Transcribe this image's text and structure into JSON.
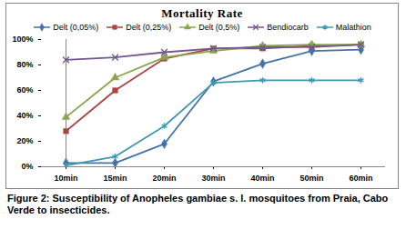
{
  "chart_data": {
    "type": "line",
    "title": "Mortality Rate",
    "caption": "Figure 2: Susceptibility of Anopheles gambiae s. l. mosquitoes from Praia, Cabo Verde to insecticides.",
    "categories": [
      "10min",
      "15min",
      "20min",
      "30min",
      "40min",
      "50min",
      "60min"
    ],
    "series": [
      {
        "name": "Delt (0,05%)",
        "color": "#4572A7",
        "marker": "diamond",
        "values": [
          3,
          3,
          18,
          67,
          81,
          91,
          92
        ]
      },
      {
        "name": "Delt (0,25%)",
        "color": "#AA4643",
        "marker": "square",
        "values": [
          28,
          60,
          85,
          93,
          93,
          95,
          96
        ]
      },
      {
        "name": "Delt (0,5%)",
        "color": "#89A54E",
        "marker": "triangle",
        "values": [
          39,
          70,
          86,
          91,
          95,
          96,
          96
        ]
      },
      {
        "name": "Bendiocarb",
        "color": "#71588F",
        "marker": "x",
        "values": [
          84,
          86,
          90,
          93,
          94,
          94,
          96
        ]
      },
      {
        "name": "Malathion",
        "color": "#4198AF",
        "marker": "asterisk",
        "values": [
          1,
          8,
          32,
          66,
          68,
          68,
          68
        ]
      }
    ],
    "ylim": [
      0,
      100
    ],
    "yticks": [
      {
        "value": 0,
        "label": "0%"
      },
      {
        "value": 20,
        "label": "20%"
      },
      {
        "value": 40,
        "label": "40%"
      },
      {
        "value": 60,
        "label": "60%"
      },
      {
        "value": 80,
        "label": "80%"
      },
      {
        "value": 100,
        "label": "100%"
      }
    ],
    "grid": false,
    "legend": "top"
  }
}
